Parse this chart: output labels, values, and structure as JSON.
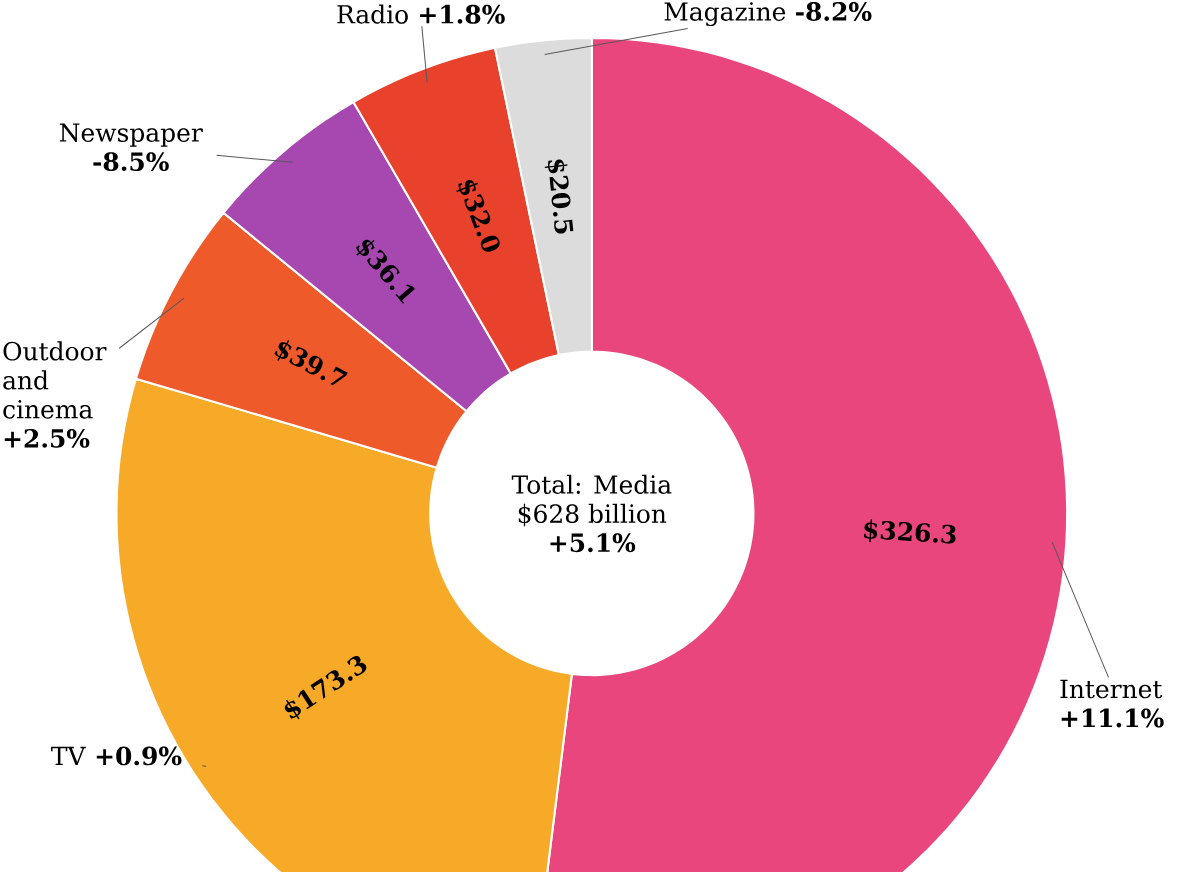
{
  "chart_data": {
    "type": "donut",
    "categories": [
      "Internet **+11.1%**",
      "TV **+0.9%**",
      "Outdoor and cinema **+2.5%**",
      "Newspaper **-8.5%**",
      "Radio **+1.8%**",
      "Magazine **-8.2%**"
    ],
    "values": [
      326.3,
      173.3,
      39.7,
      36.1,
      32.0,
      20.5
    ],
    "value_labels": [
      "$326.3",
      "$173.3",
      "$39.7",
      "$36.1",
      "$32.0",
      "$20.5"
    ],
    "colors": [
      "#e8467c",
      "#f7a928",
      "#ee5a2a",
      "#a648b0",
      "#e8412c",
      "#dcdcdc"
    ],
    "annotations": [
      "Total: Media",
      "$628 billion",
      "**+5.1%**"
    ]
  }
}
